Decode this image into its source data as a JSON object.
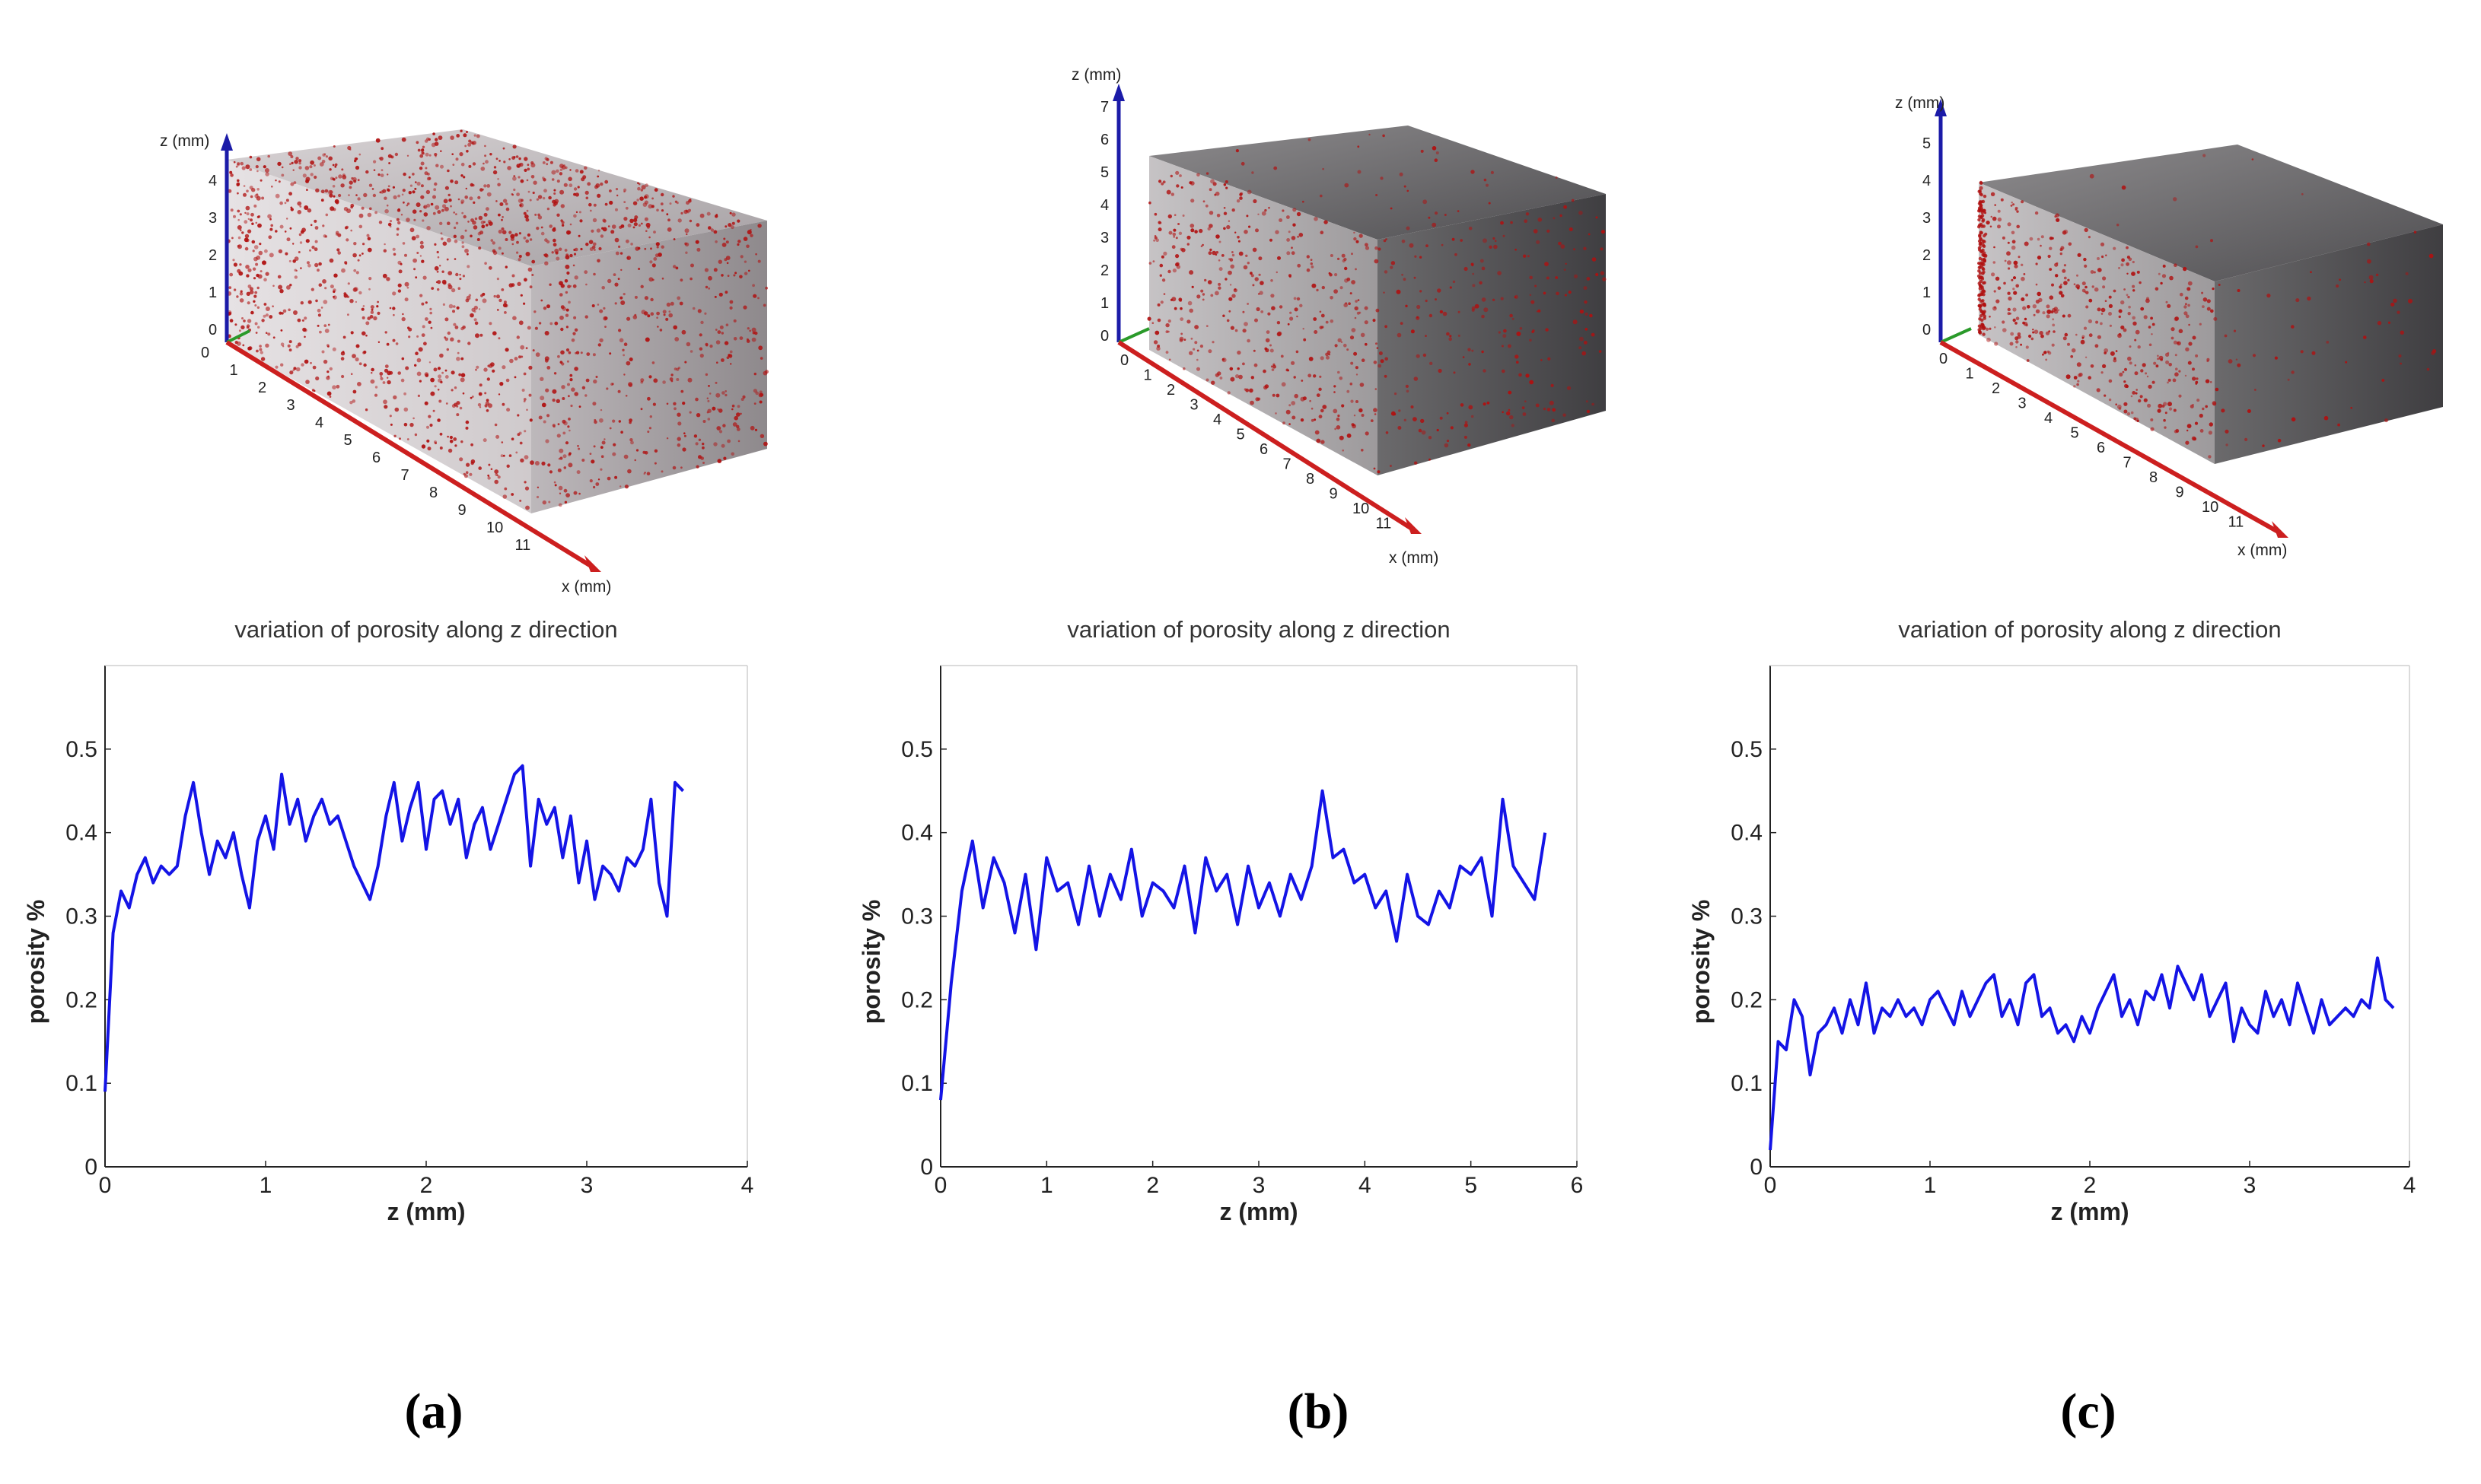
{
  "colors": {
    "line": "#1414e6",
    "x_axis": "#cc1f1f",
    "y_axis": "#2a9a2a",
    "z_axis": "#1b1ba8",
    "pore": "#b01010",
    "block_light": "#b9b6b8",
    "block_dark": "#5a5a5c"
  },
  "renders": [
    {
      "id": "a",
      "z_axis_label": "z (mm)",
      "x_axis_label": "x (mm)",
      "z_ticks": [
        "0",
        "1",
        "2",
        "3",
        "4"
      ],
      "x_ticks": [
        "0",
        "1",
        "2",
        "3",
        "4",
        "5",
        "6",
        "7",
        "8",
        "9",
        "10",
        "11"
      ]
    },
    {
      "id": "b",
      "z_axis_label": "z (mm)",
      "x_axis_label": "x (mm)",
      "z_ticks": [
        "0",
        "1",
        "2",
        "3",
        "4",
        "5",
        "6",
        "7"
      ],
      "x_ticks": [
        "0",
        "1",
        "2",
        "3",
        "4",
        "5",
        "6",
        "7",
        "8",
        "9",
        "10",
        "11"
      ]
    },
    {
      "id": "c",
      "z_axis_label": "z (mm)",
      "x_axis_label": "x (mm)",
      "z_ticks": [
        "0",
        "1",
        "2",
        "3",
        "4",
        "5"
      ],
      "x_ticks": [
        "0",
        "1",
        "2",
        "3",
        "4",
        "5",
        "6",
        "7",
        "8",
        "9",
        "10",
        "11"
      ]
    }
  ],
  "chart_data": [
    {
      "type": "line",
      "panel_label": "(a)",
      "title": "variation of porosity along z direction",
      "xlabel": "z (mm)",
      "ylabel": "porosity %",
      "xlim": [
        0,
        4
      ],
      "ylim": [
        0,
        0.6
      ],
      "xticks": [
        0,
        1,
        2,
        3,
        4
      ],
      "yticks": [
        0,
        0.1,
        0.2,
        0.3,
        0.4,
        0.5
      ],
      "ytick_labels": [
        "0",
        "0.1",
        "0.2",
        "0.3",
        "0.4",
        "0.5"
      ],
      "series": [
        {
          "x": [
            0,
            0.05,
            0.1,
            0.15,
            0.2,
            0.25,
            0.3,
            0.35,
            0.4,
            0.45,
            0.5,
            0.55,
            0.6,
            0.65,
            0.7,
            0.75,
            0.8,
            0.85,
            0.9,
            0.95,
            1.0,
            1.05,
            1.1,
            1.15,
            1.2,
            1.25,
            1.3,
            1.35,
            1.4,
            1.45,
            1.5,
            1.55,
            1.6,
            1.65,
            1.7,
            1.75,
            1.8,
            1.85,
            1.9,
            1.95,
            2.0,
            2.05,
            2.1,
            2.15,
            2.2,
            2.25,
            2.3,
            2.35,
            2.4,
            2.45,
            2.5,
            2.55,
            2.6,
            2.65,
            2.7,
            2.75,
            2.8,
            2.85,
            2.9,
            2.95,
            3.0,
            3.05,
            3.1,
            3.15,
            3.2,
            3.25,
            3.3,
            3.35,
            3.4,
            3.45,
            3.5,
            3.55,
            3.6
          ],
          "y": [
            0.09,
            0.28,
            0.33,
            0.31,
            0.35,
            0.37,
            0.34,
            0.36,
            0.35,
            0.36,
            0.42,
            0.46,
            0.4,
            0.35,
            0.39,
            0.37,
            0.4,
            0.35,
            0.31,
            0.39,
            0.42,
            0.38,
            0.47,
            0.41,
            0.44,
            0.39,
            0.42,
            0.44,
            0.41,
            0.42,
            0.39,
            0.36,
            0.34,
            0.32,
            0.36,
            0.42,
            0.46,
            0.39,
            0.43,
            0.46,
            0.38,
            0.44,
            0.45,
            0.41,
            0.44,
            0.37,
            0.41,
            0.43,
            0.38,
            0.41,
            0.44,
            0.47,
            0.48,
            0.36,
            0.44,
            0.41,
            0.43,
            0.37,
            0.42,
            0.34,
            0.39,
            0.32,
            0.36,
            0.35,
            0.33,
            0.37,
            0.36,
            0.38,
            0.44,
            0.34,
            0.3,
            0.46,
            0.45
          ]
        }
      ]
    },
    {
      "type": "line",
      "panel_label": "(b)",
      "title": "variation of porosity along z direction",
      "xlabel": "z (mm)",
      "ylabel": "porosity %",
      "xlim": [
        0,
        6
      ],
      "ylim": [
        0,
        0.6
      ],
      "xticks": [
        0,
        1,
        2,
        3,
        4,
        5,
        6
      ],
      "yticks": [
        0,
        0.1,
        0.2,
        0.3,
        0.4,
        0.5
      ],
      "ytick_labels": [
        "0",
        "0.1",
        "0.2",
        "0.3",
        "0.4",
        "0.5"
      ],
      "series": [
        {
          "x": [
            0,
            0.1,
            0.2,
            0.3,
            0.4,
            0.5,
            0.6,
            0.7,
            0.8,
            0.9,
            1.0,
            1.1,
            1.2,
            1.3,
            1.4,
            1.5,
            1.6,
            1.7,
            1.8,
            1.9,
            2.0,
            2.1,
            2.2,
            2.3,
            2.4,
            2.5,
            2.6,
            2.7,
            2.8,
            2.9,
            3.0,
            3.1,
            3.2,
            3.3,
            3.4,
            3.5,
            3.6,
            3.7,
            3.8,
            3.9,
            4.0,
            4.1,
            4.2,
            4.3,
            4.4,
            4.5,
            4.6,
            4.7,
            4.8,
            4.9,
            5.0,
            5.1,
            5.2,
            5.3,
            5.4,
            5.5,
            5.6,
            5.7
          ],
          "y": [
            0.08,
            0.22,
            0.33,
            0.39,
            0.31,
            0.37,
            0.34,
            0.28,
            0.35,
            0.26,
            0.37,
            0.33,
            0.34,
            0.29,
            0.36,
            0.3,
            0.35,
            0.32,
            0.38,
            0.3,
            0.34,
            0.33,
            0.31,
            0.36,
            0.28,
            0.37,
            0.33,
            0.35,
            0.29,
            0.36,
            0.31,
            0.34,
            0.3,
            0.35,
            0.32,
            0.36,
            0.45,
            0.37,
            0.38,
            0.34,
            0.35,
            0.31,
            0.33,
            0.27,
            0.35,
            0.3,
            0.29,
            0.33,
            0.31,
            0.36,
            0.35,
            0.37,
            0.3,
            0.44,
            0.36,
            0.34,
            0.32,
            0.4
          ]
        }
      ]
    },
    {
      "type": "line",
      "panel_label": "(c)",
      "title": "variation of porosity along z direction",
      "xlabel": "z (mm)",
      "ylabel": "porosity %",
      "xlim": [
        0,
        4
      ],
      "ylim": [
        0,
        0.6
      ],
      "xticks": [
        0,
        1,
        2,
        3,
        4
      ],
      "yticks": [
        0,
        0.1,
        0.2,
        0.3,
        0.4,
        0.5
      ],
      "ytick_labels": [
        "0",
        "0.1",
        "0.2",
        "0.3",
        "0.4",
        "0.5"
      ],
      "series": [
        {
          "x": [
            0,
            0.05,
            0.1,
            0.15,
            0.2,
            0.25,
            0.3,
            0.35,
            0.4,
            0.45,
            0.5,
            0.55,
            0.6,
            0.65,
            0.7,
            0.75,
            0.8,
            0.85,
            0.9,
            0.95,
            1.0,
            1.05,
            1.1,
            1.15,
            1.2,
            1.25,
            1.3,
            1.35,
            1.4,
            1.45,
            1.5,
            1.55,
            1.6,
            1.65,
            1.7,
            1.75,
            1.8,
            1.85,
            1.9,
            1.95,
            2.0,
            2.05,
            2.1,
            2.15,
            2.2,
            2.25,
            2.3,
            2.35,
            2.4,
            2.45,
            2.5,
            2.55,
            2.6,
            2.65,
            2.7,
            2.75,
            2.8,
            2.85,
            2.9,
            2.95,
            3.0,
            3.05,
            3.1,
            3.15,
            3.2,
            3.25,
            3.3,
            3.35,
            3.4,
            3.45,
            3.5,
            3.55,
            3.6,
            3.65,
            3.7,
            3.75,
            3.8,
            3.85,
            3.9
          ],
          "y": [
            0.02,
            0.15,
            0.14,
            0.2,
            0.18,
            0.11,
            0.16,
            0.17,
            0.19,
            0.16,
            0.2,
            0.17,
            0.22,
            0.16,
            0.19,
            0.18,
            0.2,
            0.18,
            0.19,
            0.17,
            0.2,
            0.21,
            0.19,
            0.17,
            0.21,
            0.18,
            0.2,
            0.22,
            0.23,
            0.18,
            0.2,
            0.17,
            0.22,
            0.23,
            0.18,
            0.19,
            0.16,
            0.17,
            0.15,
            0.18,
            0.16,
            0.19,
            0.21,
            0.23,
            0.18,
            0.2,
            0.17,
            0.21,
            0.2,
            0.23,
            0.19,
            0.24,
            0.22,
            0.2,
            0.23,
            0.18,
            0.2,
            0.22,
            0.15,
            0.19,
            0.17,
            0.16,
            0.21,
            0.18,
            0.2,
            0.17,
            0.22,
            0.19,
            0.16,
            0.2,
            0.17,
            0.18,
            0.19,
            0.18,
            0.2,
            0.19,
            0.25,
            0.2,
            0.19
          ]
        }
      ]
    }
  ]
}
